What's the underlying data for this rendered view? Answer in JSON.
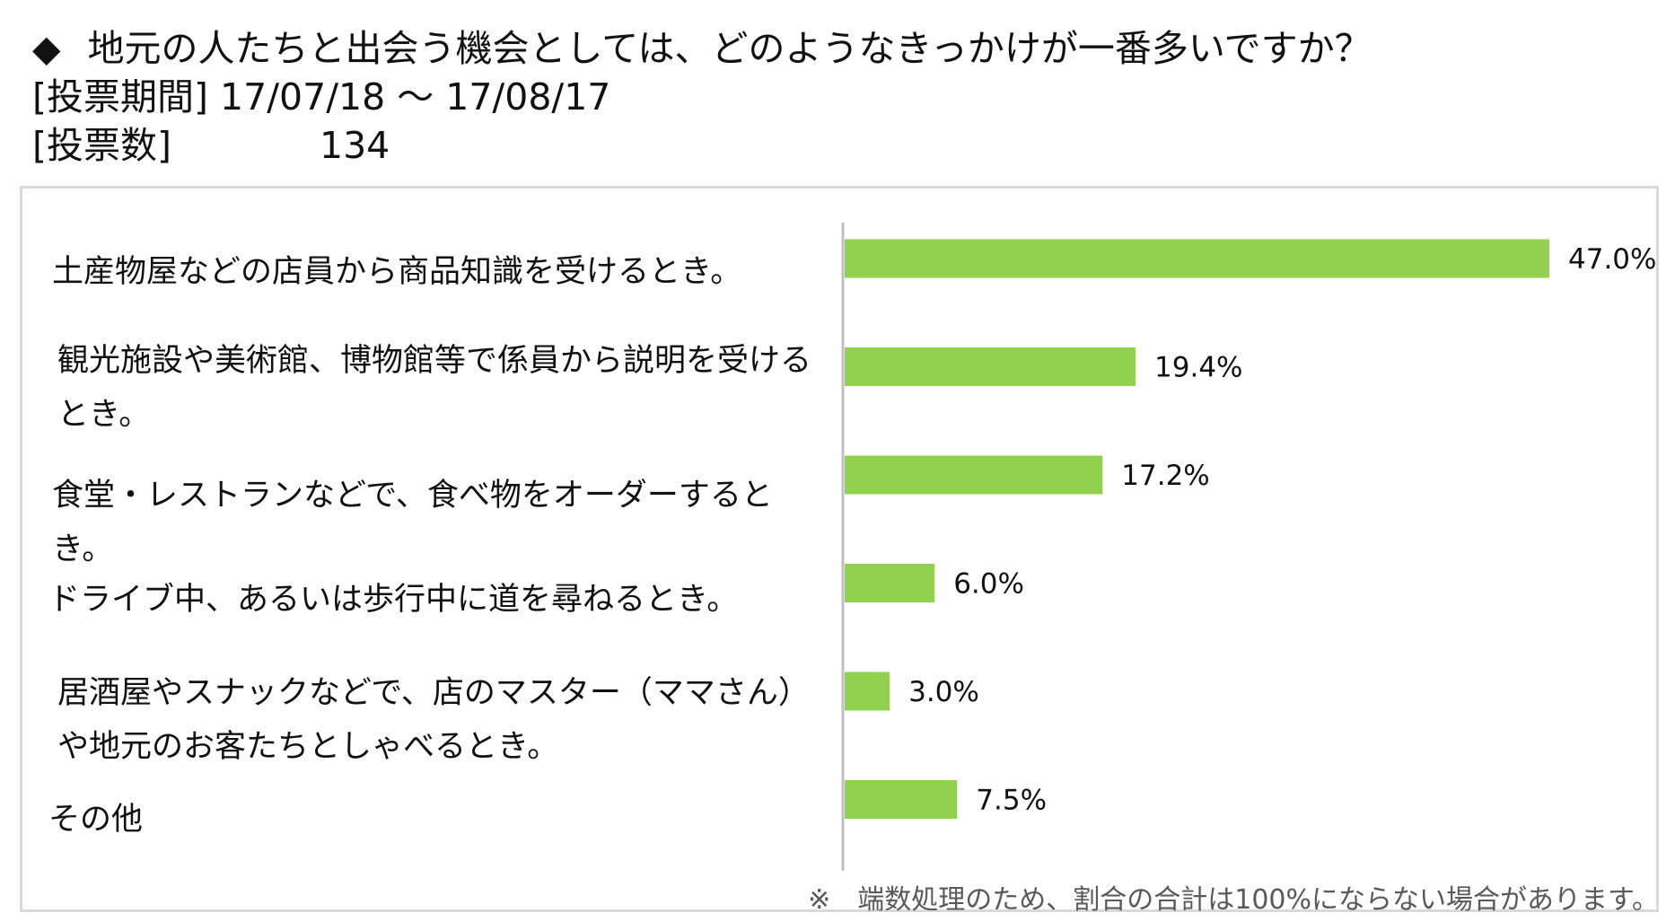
{
  "header": {
    "question_marker": "◆",
    "question": "地元の人たちと出会う機会としては、どのようなきっかけが一番多いですか？",
    "period_label": "[投票期間]",
    "period_value": "17/07/18 〜 17/08/17",
    "votes_label": "[投票数]",
    "votes_value": "134"
  },
  "chart_data": {
    "type": "bar",
    "orientation": "horizontal",
    "categories": [
      "土産物屋などの店員から商品知識を受けるとき。",
      "観光施設や美術館、博物館等で係員から説明を受けるとき。",
      "食堂・レストランなどで、食べ物をオーダーするとき。",
      "ドライブ中、あるいは歩行中に道を尋ねるとき。",
      "居酒屋やスナックなどで、店のマスター（ママさん）や地元のお客たちとしゃべるとき。",
      "その他"
    ],
    "values": [
      47.0,
      19.4,
      17.2,
      6.0,
      3.0,
      7.5
    ],
    "value_labels": [
      "47.0%",
      "19.4%",
      "17.2%",
      "6.0%",
      "3.0%",
      "7.5%"
    ],
    "xlim": [
      0,
      47
    ],
    "bar_color": "#92d050",
    "grid": false,
    "legend": "none"
  },
  "note": "※　端数処理のため、割合の合計は100%にならない場合があります。"
}
